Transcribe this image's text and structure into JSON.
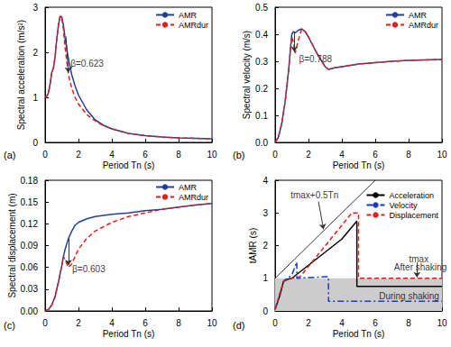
{
  "chart_data": [
    {
      "type": "line",
      "panel_label": "(a)",
      "x_label": "Period Tn (s)",
      "y_label": "Spectral acceleration (m/s²)",
      "xlim": [
        0,
        10
      ],
      "xticks": [
        0,
        2,
        4,
        6,
        8,
        10
      ],
      "ylim": [
        0,
        3
      ],
      "yticks": [
        0,
        1,
        2,
        3
      ],
      "grid": false,
      "legend": "upper right",
      "x": [
        0,
        0.1,
        0.2,
        0.3,
        0.4,
        0.5,
        0.6,
        0.7,
        0.8,
        0.9,
        1.0,
        1.1,
        1.2,
        1.4,
        1.6,
        1.8,
        2.0,
        2.5,
        3,
        3.5,
        4,
        5,
        6,
        7,
        8,
        9,
        10
      ],
      "series": [
        {
          "name": "AMR",
          "color": "#1f3f9f",
          "line_style": "solid",
          "marker": "none",
          "values": [
            1.0,
            1.02,
            1.1,
            1.3,
            1.55,
            1.65,
            1.9,
            2.3,
            2.6,
            2.8,
            2.78,
            2.6,
            2.3,
            1.85,
            1.5,
            1.25,
            1.05,
            0.72,
            0.5,
            0.38,
            0.3,
            0.2,
            0.15,
            0.12,
            0.1,
            0.09,
            0.08
          ]
        },
        {
          "name": "AMRdur",
          "color": "#e0201b",
          "line_style": "dashed",
          "marker": "none",
          "values": [
            1.0,
            1.02,
            1.1,
            1.3,
            1.55,
            1.65,
            1.9,
            2.3,
            2.6,
            2.8,
            2.75,
            2.5,
            2.1,
            1.5,
            1.2,
            1.0,
            0.85,
            0.62,
            0.48,
            0.37,
            0.3,
            0.2,
            0.15,
            0.12,
            0.1,
            0.09,
            0.08
          ]
        }
      ],
      "annotations": [
        {
          "text": "β=0.623",
          "x": 1.5,
          "y": 1.75,
          "arrow": [
            [
              1.25,
              2.35
            ],
            [
              1.4,
              1.55
            ]
          ]
        }
      ]
    },
    {
      "type": "line",
      "panel_label": "(b)",
      "x_label": "Period Tn (s)",
      "y_label": "Spectral velocity (m/s)",
      "xlim": [
        0,
        10
      ],
      "xticks": [
        0,
        2,
        4,
        6,
        8,
        10
      ],
      "ylim": [
        0,
        0.5
      ],
      "yticks": [
        {
          "value": 0,
          "label": "0.0"
        },
        0.1,
        0.2,
        0.3,
        0.4,
        0.5
      ],
      "grid": false,
      "legend": "upper right",
      "x": [
        0,
        0.2,
        0.4,
        0.6,
        0.8,
        0.9,
        1.0,
        1.1,
        1.2,
        1.4,
        1.6,
        1.8,
        2.0,
        2.5,
        3.0,
        3.2,
        3.5,
        4,
        5,
        6,
        7,
        8,
        9,
        10
      ],
      "series": [
        {
          "name": "AMR",
          "color": "#1f3f9f",
          "line_style": "solid",
          "marker": "none",
          "values": [
            0,
            0.02,
            0.07,
            0.15,
            0.26,
            0.33,
            0.4,
            0.41,
            0.405,
            0.415,
            0.42,
            0.41,
            0.39,
            0.33,
            0.28,
            0.27,
            0.275,
            0.28,
            0.29,
            0.295,
            0.3,
            0.303,
            0.305,
            0.307
          ]
        },
        {
          "name": "AMRdur",
          "color": "#e0201b",
          "line_style": "dashed",
          "marker": "none",
          "values": [
            0,
            0.02,
            0.07,
            0.15,
            0.26,
            0.33,
            0.39,
            0.37,
            0.33,
            0.38,
            0.42,
            0.41,
            0.39,
            0.33,
            0.28,
            0.27,
            0.275,
            0.28,
            0.29,
            0.295,
            0.3,
            0.303,
            0.305,
            0.307
          ]
        }
      ],
      "annotations": [
        {
          "text": "β=0.788",
          "x": 1.4,
          "y": 0.31,
          "arrow": [
            [
              1.15,
              0.41
            ],
            [
              1.15,
              0.335
            ]
          ]
        }
      ]
    },
    {
      "type": "line",
      "panel_label": "(c)",
      "x_label": "Period Tn (s)",
      "y_label": "Spectral displacement (m)",
      "xlim": [
        0,
        10
      ],
      "xticks": [
        0,
        2,
        4,
        6,
        8,
        10
      ],
      "ylim": [
        0,
        0.18
      ],
      "yticks": [
        {
          "value": 0,
          "label": "0.00"
        },
        {
          "value": 0.03,
          "label": "0.03"
        },
        {
          "value": 0.06,
          "label": "0.06"
        },
        {
          "value": 0.09,
          "label": "0.09"
        },
        {
          "value": 0.12,
          "label": "0.12"
        },
        {
          "value": 0.15,
          "label": "0.15"
        },
        {
          "value": 0.18,
          "label": "0.18"
        }
      ],
      "grid": false,
      "legend": "upper right",
      "x": [
        0,
        0.2,
        0.4,
        0.6,
        0.8,
        1.0,
        1.1,
        1.2,
        1.4,
        1.6,
        1.8,
        2.0,
        2.5,
        3,
        4,
        5,
        6,
        7,
        8,
        9,
        10
      ],
      "series": [
        {
          "name": "AMR",
          "color": "#1f3f9f",
          "line_style": "solid",
          "marker": "none",
          "values": [
            0,
            0.002,
            0.008,
            0.02,
            0.04,
            0.062,
            0.075,
            0.085,
            0.1,
            0.11,
            0.118,
            0.122,
            0.127,
            0.13,
            0.133,
            0.135,
            0.138,
            0.14,
            0.143,
            0.146,
            0.148
          ]
        },
        {
          "name": "AMRdur",
          "color": "#e0201b",
          "line_style": "dashed",
          "marker": "none",
          "values": [
            0,
            0.002,
            0.008,
            0.02,
            0.04,
            0.062,
            0.075,
            0.07,
            0.06,
            0.065,
            0.075,
            0.085,
            0.1,
            0.11,
            0.122,
            0.13,
            0.135,
            0.14,
            0.143,
            0.146,
            0.148
          ]
        }
      ],
      "annotations": [
        {
          "text": "β=0.603",
          "x": 1.6,
          "y": 0.058,
          "arrow": [
            [
              1.4,
              0.1
            ],
            [
              1.4,
              0.063
            ]
          ]
        }
      ]
    },
    {
      "type": "line",
      "panel_label": "(d)",
      "x_label": "Period Tn (s)",
      "y_label": "tAMR (s)",
      "xlim": [
        0,
        10
      ],
      "xticks": [
        0,
        2,
        4,
        6,
        8,
        10
      ],
      "ylim": [
        0,
        4
      ],
      "yticks": [
        0,
        1,
        2,
        3,
        4
      ],
      "grid": false,
      "legend": "upper right",
      "shaded_band": [
        0,
        1.0
      ],
      "series": [
        {
          "name": "Acceleration",
          "color": "#000000",
          "line_style": "solid",
          "marker": "none",
          "x": [
            0,
            0.3,
            0.5,
            0.6,
            1.0,
            2.0,
            4.0,
            4.9,
            4.9,
            10
          ],
          "values": [
            0.05,
            0.5,
            0.9,
            0.95,
            1.0,
            1.4,
            2.2,
            2.75,
            0.75,
            0.75
          ]
        },
        {
          "name": "Velocity",
          "color": "#1a3fb0",
          "line_style": "dashdot",
          "marker": "none",
          "x": [
            0,
            0.5,
            1.0,
            1.3,
            1.3,
            3.2,
            3.2,
            10
          ],
          "values": [
            0.05,
            0.9,
            1.1,
            1.5,
            1.0,
            1.05,
            0.3,
            0.3
          ]
        },
        {
          "name": "Displacement",
          "color": "#e0201b",
          "line_style": "dashed",
          "marker": "none",
          "x": [
            0,
            0.5,
            1.0,
            1.5,
            4.6,
            5.0,
            5.0,
            10
          ],
          "values": [
            0.05,
            0.9,
            1.0,
            1.05,
            3.0,
            3.0,
            1.0,
            1.0
          ]
        }
      ],
      "reference_lines": [
        {
          "x": [
            0,
            6
          ],
          "values": [
            1,
            4
          ],
          "color": "#000000"
        }
      ],
      "annotations": [
        {
          "text": "tmax+0.5Tn",
          "x": 0.9,
          "y": 3.55,
          "arrow": [
            [
              2.6,
              3.35
            ],
            [
              2.9,
              2.5
            ]
          ]
        },
        {
          "text": "After shaking",
          "x": 7.1,
          "y": 1.35
        },
        {
          "text": "During shaking",
          "x": 6.2,
          "y": 0.45
        },
        {
          "text": "tmax",
          "x": 8.0,
          "y": 1.6,
          "arrow": [
            [
              8.5,
              1.48
            ],
            [
              8.5,
              1.03
            ]
          ]
        }
      ]
    }
  ]
}
